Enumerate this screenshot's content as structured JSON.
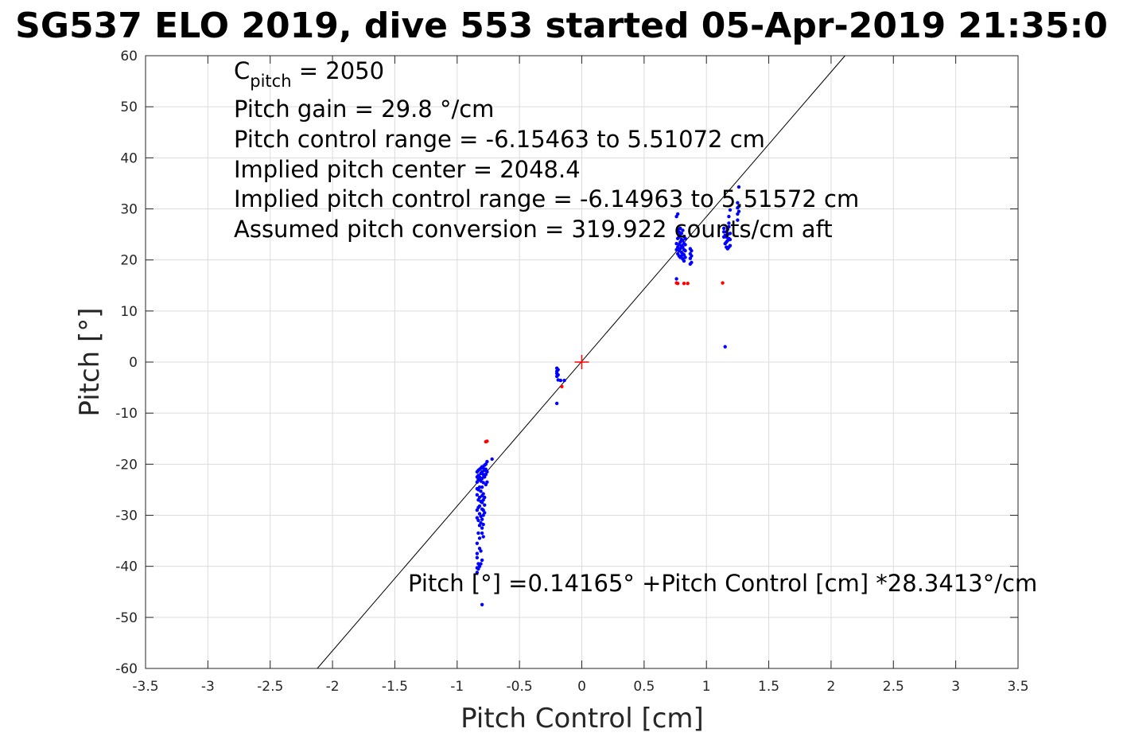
{
  "chart_data": {
    "type": "scatter",
    "title": "SG537 ELO 2019, dive 553 started 05-Apr-2019 21:35:0",
    "xlabel": "Pitch Control [cm]",
    "ylabel": "Pitch [°]",
    "xlim": [
      -3.5,
      3.5
    ],
    "ylim": [
      -60,
      60
    ],
    "xticks": [
      -3.5,
      -3,
      -2.5,
      -2,
      -1.5,
      -1,
      -0.5,
      0,
      0.5,
      1,
      1.5,
      2,
      2.5,
      3,
      3.5
    ],
    "xtick_labels": [
      "-3.5",
      "-3",
      "-2.5",
      "-2",
      "-1.5",
      "-1",
      "-0.5",
      "0",
      "0.5",
      "1",
      "1.5",
      "2",
      "2.5",
      "3",
      "3.5"
    ],
    "yticks": [
      -60,
      -50,
      -40,
      -30,
      -20,
      -10,
      0,
      10,
      20,
      30,
      40,
      50,
      60
    ],
    "ytick_labels": [
      "-60",
      "-50",
      "-40",
      "-30",
      "-20",
      "-10",
      "0",
      "10",
      "20",
      "30",
      "40",
      "50",
      "60"
    ],
    "grid": true,
    "annotations": {
      "c_pitch_base": "C",
      "c_pitch_sub": "pitch",
      "c_pitch_rest": " = 2050",
      "lines": [
        "Pitch gain = 29.8 °/cm",
        "Pitch control range = -6.15463 to 5.51072 cm",
        "Implied pitch center = 2048.4",
        "Implied pitch control range = -6.14963 to 5.51572 cm",
        "Assumed pitch conversion = 319.922 counts/cm aft"
      ],
      "fit_text": "Pitch [°] =0.14165° +Pitch Control [cm] *28.3413°/cm"
    },
    "fit_line": {
      "intercept": 0.14165,
      "slope": 28.3413,
      "color": "#000000"
    },
    "center_marker": {
      "x": 0,
      "y": 0,
      "color": "#ff0000"
    },
    "series": [
      {
        "color": "#0000ff",
        "points": [
          [
            -0.84,
            -21.5
          ],
          [
            -0.84,
            -22.5
          ],
          [
            -0.84,
            -23.5
          ],
          [
            -0.84,
            -24.8
          ],
          [
            -0.84,
            -26
          ],
          [
            -0.84,
            -29
          ],
          [
            -0.84,
            -30.5
          ],
          [
            -0.84,
            -35.5
          ],
          [
            -0.84,
            -37.5
          ],
          [
            -0.84,
            -38.3
          ],
          [
            -0.84,
            -40.3
          ],
          [
            -0.84,
            -41.2
          ],
          [
            -0.83,
            -21.2
          ],
          [
            -0.83,
            -22.2
          ],
          [
            -0.83,
            -23
          ],
          [
            -0.83,
            -25
          ],
          [
            -0.83,
            -27
          ],
          [
            -0.83,
            -28.5
          ],
          [
            -0.83,
            -31
          ],
          [
            -0.83,
            -33.5
          ],
          [
            -0.83,
            -39.5
          ],
          [
            -0.83,
            -40.5
          ],
          [
            -0.82,
            -21
          ],
          [
            -0.82,
            -22.5
          ],
          [
            -0.82,
            -24.5
          ],
          [
            -0.82,
            -26.5
          ],
          [
            -0.82,
            -28.2
          ],
          [
            -0.82,
            -29.7
          ],
          [
            -0.82,
            -32
          ],
          [
            -0.82,
            -34.5
          ],
          [
            -0.82,
            -36.5
          ],
          [
            -0.82,
            -40
          ],
          [
            -0.81,
            -20.8
          ],
          [
            -0.81,
            -21.8
          ],
          [
            -0.81,
            -23.3
          ],
          [
            -0.81,
            -25.3
          ],
          [
            -0.81,
            -27.3
          ],
          [
            -0.81,
            -30.2
          ],
          [
            -0.81,
            -31.5
          ],
          [
            -0.81,
            -37
          ],
          [
            -0.81,
            -39.5
          ],
          [
            -0.8,
            -20.5
          ],
          [
            -0.8,
            -21.5
          ],
          [
            -0.8,
            -22.8
          ],
          [
            -0.8,
            -24.5
          ],
          [
            -0.8,
            -26.2
          ],
          [
            -0.8,
            -27.5
          ],
          [
            -0.8,
            -28.8
          ],
          [
            -0.8,
            -30.8
          ],
          [
            -0.8,
            -32.5
          ],
          [
            -0.8,
            -33.5
          ],
          [
            -0.8,
            -38.8
          ],
          [
            -0.8,
            -47.5
          ],
          [
            -0.79,
            -20.8
          ],
          [
            -0.79,
            -22
          ],
          [
            -0.79,
            -23.6
          ],
          [
            -0.79,
            -25.8
          ],
          [
            -0.79,
            -27
          ],
          [
            -0.79,
            -29
          ],
          [
            -0.79,
            -30
          ],
          [
            -0.79,
            -31.8
          ],
          [
            -0.79,
            -34.2
          ],
          [
            -0.78,
            -20.2
          ],
          [
            -0.78,
            -21.2
          ],
          [
            -0.78,
            -22.5
          ],
          [
            -0.78,
            -26.5
          ],
          [
            -0.78,
            -28
          ],
          [
            -0.78,
            -29.5
          ],
          [
            -0.77,
            -20
          ],
          [
            -0.77,
            -21
          ],
          [
            -0.77,
            -22
          ],
          [
            -0.77,
            -24
          ],
          [
            -0.76,
            -19.5
          ],
          [
            -0.76,
            -21.5
          ],
          [
            -0.76,
            -23.5
          ],
          [
            -0.72,
            -19
          ],
          [
            -0.2,
            -1.2
          ],
          [
            -0.2,
            -1.8
          ],
          [
            -0.2,
            -2.2
          ],
          [
            -0.2,
            -2.8
          ],
          [
            -0.19,
            -1.5
          ],
          [
            -0.19,
            -2.5
          ],
          [
            -0.19,
            -3.5
          ],
          [
            -0.2,
            -8.1
          ],
          [
            -0.17,
            -3.6
          ],
          [
            -0.14,
            -3.6
          ],
          [
            0.76,
            16.3
          ],
          [
            0.76,
            22.0
          ],
          [
            0.76,
            23.2
          ],
          [
            0.76,
            28.5
          ],
          [
            0.77,
            21.2
          ],
          [
            0.77,
            22.5
          ],
          [
            0.77,
            24.2
          ],
          [
            0.77,
            26
          ],
          [
            0.77,
            29
          ],
          [
            0.78,
            20.8
          ],
          [
            0.78,
            21.8
          ],
          [
            0.78,
            23
          ],
          [
            0.78,
            24.5
          ],
          [
            0.78,
            25.5
          ],
          [
            0.79,
            20.5
          ],
          [
            0.79,
            22.2
          ],
          [
            0.79,
            23.5
          ],
          [
            0.79,
            25
          ],
          [
            0.79,
            26.2
          ],
          [
            0.8,
            20.8
          ],
          [
            0.8,
            21.5
          ],
          [
            0.8,
            22.8
          ],
          [
            0.8,
            24
          ],
          [
            0.8,
            25.2
          ],
          [
            0.81,
            20.2
          ],
          [
            0.81,
            21.2
          ],
          [
            0.81,
            22.5
          ],
          [
            0.81,
            23.8
          ],
          [
            0.81,
            25.8
          ],
          [
            0.82,
            19.8
          ],
          [
            0.82,
            21
          ],
          [
            0.82,
            22
          ],
          [
            0.82,
            23.2
          ],
          [
            0.82,
            24.6
          ],
          [
            0.83,
            20.5
          ],
          [
            0.83,
            21.8
          ],
          [
            0.83,
            23
          ],
          [
            0.83,
            24.2
          ],
          [
            0.87,
            19.2
          ],
          [
            0.87,
            20.3
          ],
          [
            0.87,
            21.2
          ],
          [
            0.87,
            22.2
          ],
          [
            0.88,
            19.5
          ],
          [
            0.88,
            20.8
          ],
          [
            0.88,
            21.8
          ],
          [
            1.14,
            24.5
          ],
          [
            1.14,
            25.5
          ],
          [
            1.14,
            26.2
          ],
          [
            1.15,
            3.0
          ],
          [
            1.15,
            23.2
          ],
          [
            1.15,
            24.8
          ],
          [
            1.16,
            22.5
          ],
          [
            1.16,
            23.5
          ],
          [
            1.16,
            24.5
          ],
          [
            1.16,
            25.5
          ],
          [
            1.17,
            22.2
          ],
          [
            1.17,
            23.8
          ],
          [
            1.17,
            25
          ],
          [
            1.17,
            26
          ],
          [
            1.18,
            22.5
          ],
          [
            1.18,
            24.2
          ],
          [
            1.18,
            26.5
          ],
          [
            1.18,
            27.2
          ],
          [
            1.18,
            28.5
          ],
          [
            1.19,
            22.8
          ],
          [
            1.19,
            24
          ],
          [
            1.19,
            25.2
          ],
          [
            1.19,
            29.8
          ],
          [
            1.25,
            27.8
          ],
          [
            1.25,
            29
          ],
          [
            1.25,
            30.2
          ],
          [
            1.25,
            31.2
          ],
          [
            1.26,
            29.5
          ],
          [
            1.26,
            30.5
          ],
          [
            1.26,
            34.3
          ]
        ]
      },
      {
        "color": "#ff0000",
        "points": [
          [
            -0.76,
            -15.5
          ],
          [
            -0.77,
            -15.6
          ],
          [
            -0.16,
            -4.8
          ],
          [
            0.76,
            15.5
          ],
          [
            0.77,
            15.4
          ],
          [
            0.82,
            15.4
          ],
          [
            0.85,
            15.4
          ],
          [
            1.13,
            15.5
          ]
        ]
      }
    ]
  }
}
